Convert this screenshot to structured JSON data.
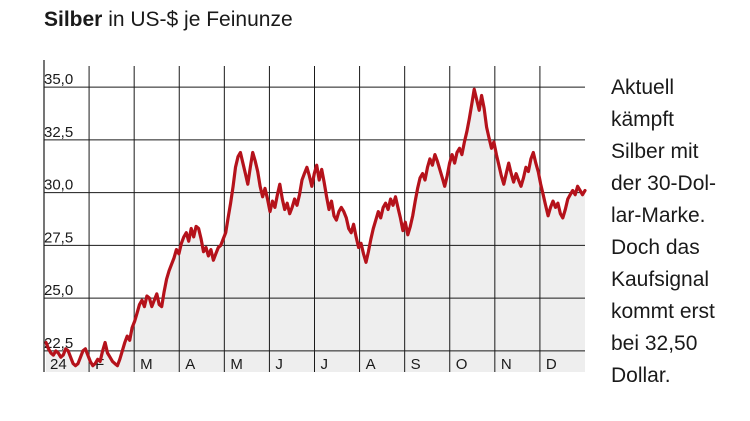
{
  "title": {
    "bold": "Silber",
    "rest": " in US-$ je Feinunze"
  },
  "caption": [
    "Aktuell",
    "kämpft",
    "Silber mit",
    "der 30-Dol-",
    "lar-Marke.",
    "Doch das",
    "Kaufsignal",
    "kommt erst",
    "bei 32,50",
    "Dollar."
  ],
  "colors": {
    "line": "#b5121b",
    "area": "#eeeeee",
    "grid": "#1a1a1a"
  },
  "chart_data": {
    "type": "area",
    "title": "Silber in US-$ je Feinunze",
    "xlabel": "",
    "ylabel": "",
    "ylim": [
      21.5,
      36
    ],
    "yticks": [
      {
        "value": 22.5,
        "label": "22,5"
      },
      {
        "value": 25.0,
        "label": "25,0"
      },
      {
        "value": 27.5,
        "label": "27,5"
      },
      {
        "value": 30.0,
        "label": "30,0"
      },
      {
        "value": 32.5,
        "label": "32,5"
      },
      {
        "value": 35.0,
        "label": "35,0"
      }
    ],
    "months": [
      "24",
      "F",
      "M",
      "A",
      "M",
      "J",
      "J",
      "A",
      "S",
      "O",
      "N",
      "D"
    ],
    "grid": true,
    "series": [
      {
        "values": [
          22.9,
          22.6,
          22.4,
          22.3,
          22.5,
          22.4,
          22.2,
          22.3,
          22.6,
          22.5,
          22.2,
          21.9,
          21.8,
          21.9,
          22.2,
          22.5,
          22.6,
          22.3,
          22.0,
          21.8,
          21.9,
          22.1,
          22.0,
          22.5,
          22.9,
          22.4,
          22.2,
          22.0,
          21.9,
          21.8,
          22.1,
          22.5,
          22.9,
          23.2,
          23.0,
          23.6,
          23.9,
          24.3,
          24.7,
          24.9,
          24.6,
          25.1,
          25.0,
          24.6,
          24.9,
          25.2,
          24.7,
          24.6,
          25.3,
          25.9,
          26.3,
          26.6,
          26.9,
          27.3,
          27.1,
          27.6,
          27.9,
          28.1,
          27.7,
          28.3,
          27.9,
          28.4,
          28.3,
          27.8,
          27.2,
          27.4,
          27.0,
          27.3,
          26.8,
          27.1,
          27.4,
          27.5,
          27.8,
          28.1,
          28.8,
          29.5,
          30.3,
          31.2,
          31.7,
          31.9,
          31.4,
          30.9,
          30.4,
          31.2,
          31.9,
          31.5,
          31.0,
          30.3,
          29.8,
          30.2,
          29.7,
          29.1,
          29.6,
          29.3,
          29.9,
          30.4,
          29.7,
          29.2,
          29.5,
          29.0,
          29.3,
          29.7,
          29.4,
          29.9,
          30.6,
          30.9,
          31.2,
          30.8,
          30.3,
          30.9,
          31.3,
          30.6,
          31.1,
          30.5,
          29.8,
          29.2,
          29.6,
          28.9,
          28.7,
          29.1,
          29.3,
          29.1,
          28.8,
          28.3,
          28.1,
          28.5,
          27.9,
          27.4,
          27.6,
          27.1,
          26.7,
          27.2,
          27.8,
          28.3,
          28.7,
          29.1,
          28.8,
          29.3,
          29.5,
          29.2,
          29.7,
          29.4,
          29.8,
          29.3,
          28.8,
          28.2,
          28.6,
          28.0,
          28.4,
          28.9,
          29.6,
          30.2,
          30.7,
          30.9,
          30.6,
          31.2,
          31.6,
          31.3,
          31.8,
          31.5,
          31.1,
          30.7,
          30.3,
          30.8,
          31.4,
          31.8,
          31.4,
          31.9,
          32.1,
          31.8,
          32.4,
          32.9,
          33.5,
          34.2,
          34.9,
          34.4,
          33.9,
          34.6,
          34.0,
          33.1,
          32.6,
          32.1,
          32.4,
          31.8,
          31.3,
          30.8,
          30.4,
          30.9,
          31.4,
          30.9,
          30.5,
          30.9,
          30.6,
          30.3,
          30.7,
          31.2,
          31.0,
          31.6,
          31.9,
          31.4,
          31.0,
          30.4,
          29.9,
          29.4,
          28.9,
          29.3,
          29.6,
          29.3,
          29.5,
          29.0,
          28.8,
          29.2,
          29.7,
          29.9,
          30.1,
          29.9,
          30.3,
          30.1,
          29.9,
          30.1
        ]
      }
    ]
  }
}
